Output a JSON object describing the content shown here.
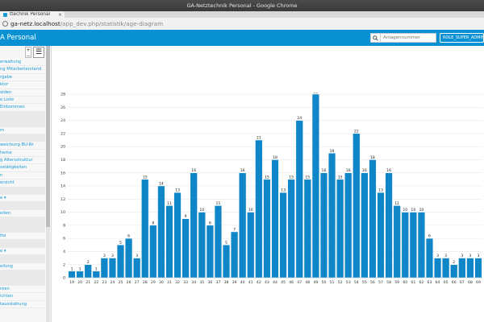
{
  "window": {
    "title": "GA-Netztechnik Personal - Google Chrome"
  },
  "tab": {
    "label": "ttechnik Personal",
    "close": "×"
  },
  "address": {
    "host": "ga-netz.localhost",
    "path": "/app_dev.php/statistik/age-diagram"
  },
  "appbar": {
    "brand": "A Personal",
    "search_placeholder": "Anlagennummer",
    "role_label": "ROLE_SUPER_ADMIN"
  },
  "colors": {
    "appbar": "#0a91d4",
    "bar": "#0f86c8",
    "link": "#1a9ad6"
  },
  "sidebar": {
    "controls": {
      "plus": "+",
      "minus": "−",
      "menu": "☰"
    },
    "items": [
      {
        "label": "erwaltung"
      },
      {
        "label": "ng Mitarbeiterstand"
      },
      {
        "label": "rgabe"
      },
      {
        "label": "ktor"
      },
      {
        "label": "olden"
      },
      {
        "label": "e Liste"
      },
      {
        "label": "Einkommen"
      },
      {
        "label": ""
      },
      {
        "label": ""
      },
      {
        "label": "m"
      },
      {
        "label": ""
      },
      {
        "label": "weichung BU-Nr"
      },
      {
        "label": "heme"
      },
      {
        "label": "g Altersstruktur"
      },
      {
        "label": "sstätigkeiten"
      },
      {
        "label": "n"
      },
      {
        "label": "ersicht"
      },
      {
        "label": ""
      },
      {
        "label": "e ▾"
      },
      {
        "label": ""
      },
      {
        "label": "eiten"
      },
      {
        "label": ""
      },
      {
        "label": ""
      },
      {
        "label": "tte"
      },
      {
        "label": ""
      },
      {
        "label": "e ▾"
      },
      {
        "label": ""
      },
      {
        "label": "eilung"
      },
      {
        "label": ""
      },
      {
        "label": ""
      },
      {
        "label": "nten"
      },
      {
        "label": "ichten"
      },
      {
        "label": "tausstattung"
      }
    ]
  },
  "chart_data": {
    "type": "bar",
    "title": "",
    "xlabel": "",
    "ylabel": "",
    "ylim": [
      0,
      28
    ],
    "yticks": [
      0,
      2,
      4,
      6,
      8,
      10,
      12,
      14,
      16,
      18,
      20,
      22,
      24,
      26,
      28
    ],
    "grid": true,
    "categories": [
      "19",
      "20",
      "21",
      "22",
      "23",
      "24",
      "25",
      "26",
      "27",
      "28",
      "29",
      "30",
      "31",
      "32",
      "33",
      "34",
      "35",
      "36",
      "37",
      "38",
      "39",
      "40",
      "41",
      "42",
      "43",
      "44",
      "45",
      "46",
      "47",
      "48",
      "49",
      "50",
      "51",
      "52",
      "53",
      "54",
      "55",
      "56",
      "57",
      "58",
      "59",
      "60",
      "61",
      "62",
      "63",
      "64",
      "65",
      "66",
      "67",
      "68",
      "69"
    ],
    "values": [
      1,
      1,
      2,
      1,
      3,
      3,
      5,
      6,
      3,
      15,
      8,
      14,
      11,
      13,
      9,
      16,
      10,
      8,
      11,
      5,
      7,
      16,
      10,
      21,
      15,
      18,
      13,
      15,
      24,
      15,
      28,
      16,
      19,
      15,
      16,
      22,
      16,
      18,
      13,
      16,
      11,
      10,
      10,
      10,
      6,
      3,
      3,
      2,
      3,
      3,
      3
    ]
  }
}
